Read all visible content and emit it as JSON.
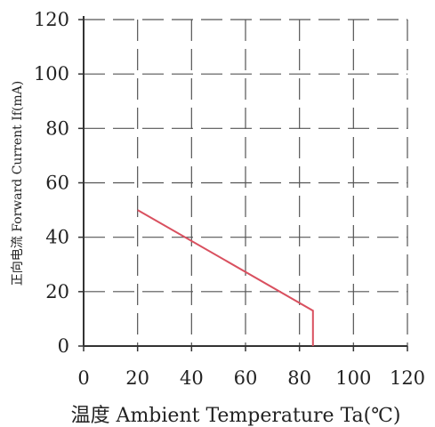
{
  "chart_data": {
    "type": "line",
    "title": "",
    "xlabel": "温度 Ambient Temperature Ta(℃)",
    "ylabel": "正向电流 Forward Current If(mA)",
    "xlim": [
      0,
      120
    ],
    "ylim": [
      0,
      120
    ],
    "xticks": [
      "0",
      "20",
      "40",
      "60",
      "80",
      "100",
      "120"
    ],
    "yticks": [
      "0",
      "20",
      "40",
      "60",
      "80",
      "100",
      "120"
    ],
    "grid": true,
    "series": [
      {
        "color": "#d9505f",
        "points": [
          [
            20,
            50
          ],
          [
            85,
            13
          ],
          [
            85,
            0
          ]
        ]
      }
    ]
  }
}
